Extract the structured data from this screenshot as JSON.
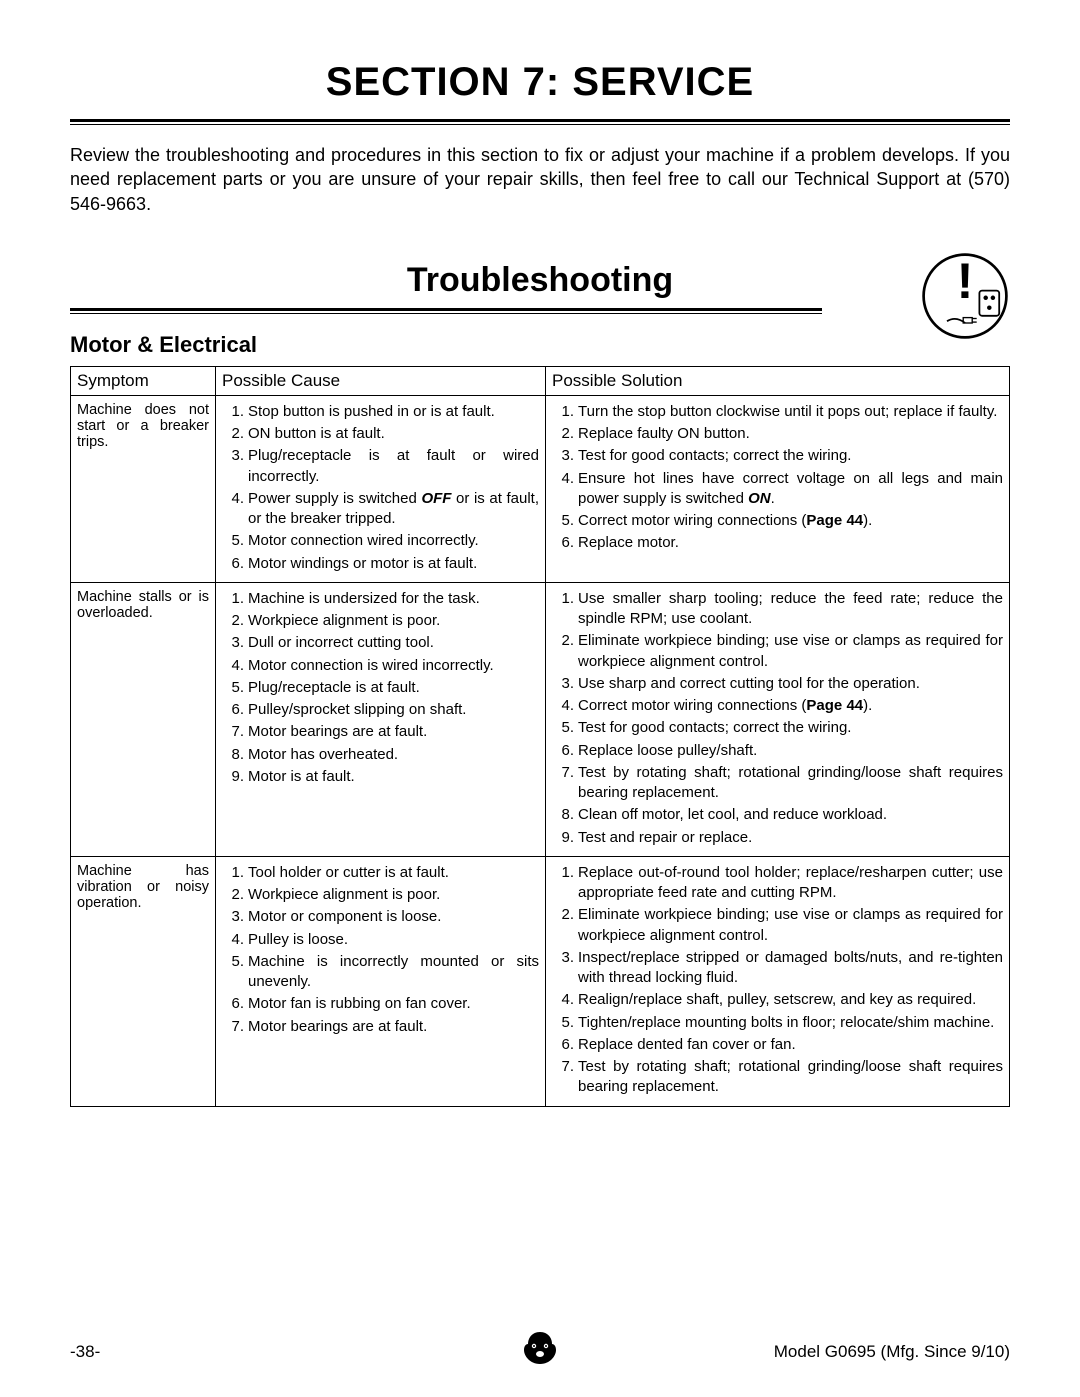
{
  "section_title": "SECTION 7: SERVICE",
  "intro": "Review the troubleshooting and procedures in this section to fix or adjust your machine if a problem develops. If you need replacement parts or you are unsure of your repair skills, then feel free to call our Technical Support at (570) 546-9663.",
  "sub_title": "Troubleshooting",
  "category": "Motor & Electrical",
  "headers": {
    "symptom": "Symptom",
    "cause": "Possible Cause",
    "solution": "Possible Solution"
  },
  "rows": [
    {
      "symptom": "Machine does not start or a breaker trips.",
      "causes": [
        "Stop button is pushed in or is at fault.",
        "ON button is at fault.",
        "Plug/receptacle is at fault or wired incorrectly.",
        "Power supply is switched <b><i>OFF</i></b> or is at fault, or the breaker tripped.",
        "Motor connection wired incorrectly.",
        "Motor windings or motor is at fault."
      ],
      "solutions": [
        "Turn the stop button clockwise until it pops out; replace if faulty.",
        "Replace faulty ON button.",
        "Test for good contacts; correct the wiring.",
        "Ensure hot lines have correct voltage on all legs and main power supply is switched <b><i>ON</i></b>.",
        "Correct motor wiring connections (<b>Page 44</b>).",
        "Replace motor."
      ]
    },
    {
      "symptom": "Machine stalls or is overloaded.",
      "causes": [
        "Machine is undersized for the task.",
        "Workpiece alignment is poor.",
        "Dull or incorrect cutting tool.",
        "Motor connection is wired incorrectly.",
        "Plug/receptacle is at fault.",
        "Pulley/sprocket slipping on shaft.",
        "Motor bearings are at fault.",
        "Motor has overheated.",
        "Motor is at fault."
      ],
      "solutions": [
        "Use smaller sharp tooling; reduce the feed rate; reduce the spindle RPM; use coolant.",
        "Eliminate workpiece binding; use vise or clamps as required for workpiece alignment control.",
        "Use sharp and correct cutting tool for the operation.",
        "Correct motor wiring connections (<b>Page 44</b>).",
        "Test for good contacts; correct the wiring.",
        "Replace loose pulley/shaft.",
        "Test by rotating shaft; rotational grinding/loose shaft requires bearing replacement.",
        "Clean off motor, let cool, and reduce workload.",
        "Test and repair or replace."
      ]
    },
    {
      "symptom": "Machine has vibration or noisy operation.",
      "causes": [
        "Tool holder or cutter is at fault.",
        "Workpiece alignment is poor.",
        "Motor or component is loose.",
        "Pulley is loose.",
        "Machine is incorrectly mounted or sits unevenly.",
        "Motor fan is rubbing on fan cover.",
        "Motor bearings are at fault."
      ],
      "solutions": [
        "Replace out-of-round tool holder; replace/resharpen cutter; use appropriate feed rate and cutting RPM.",
        "Eliminate workpiece binding; use vise or clamps as required for workpiece alignment control.",
        "Inspect/replace stripped or damaged bolts/nuts, and re-tighten with thread locking fluid.",
        "Realign/replace shaft, pulley, setscrew, and key as required.",
        "Tighten/replace mounting bolts in floor; relocate/shim machine.",
        "Replace dented fan cover or fan.",
        "Test by rotating shaft; rotational grinding/loose shaft requires bearing replacement."
      ]
    }
  ],
  "footer": {
    "page": "-38-",
    "model": "Model G0695 (Mfg. Since 9/10)"
  }
}
